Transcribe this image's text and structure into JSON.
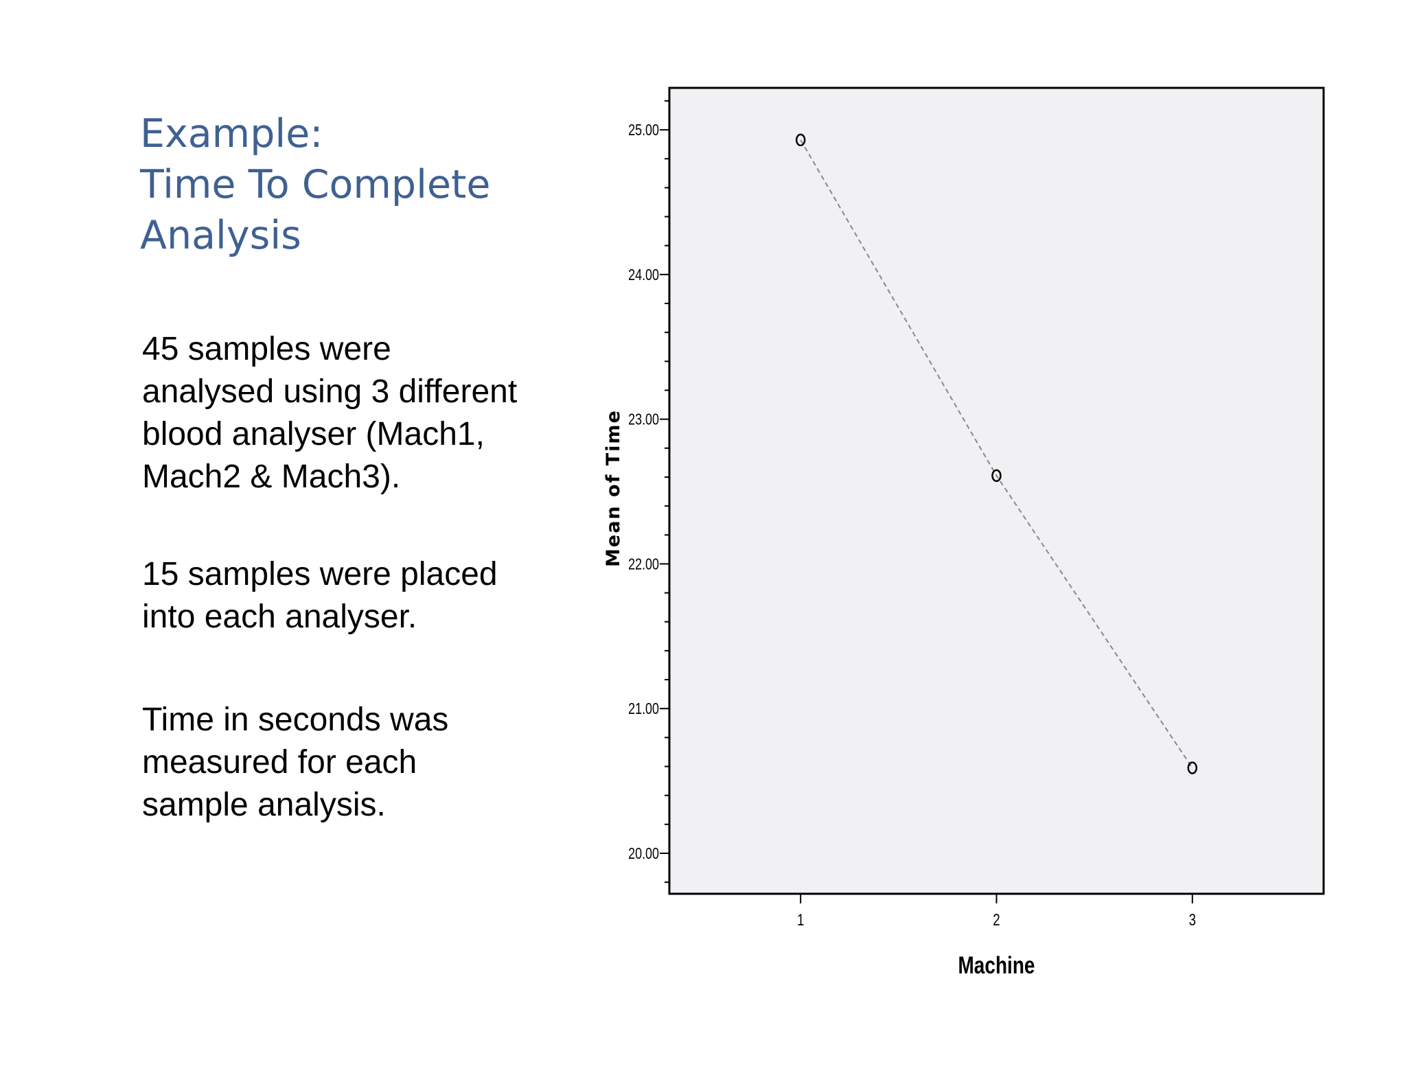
{
  "slide": {
    "title_lines": [
      "Example:",
      "Time To Complete",
      "Analysis"
    ],
    "paragraphs": [
      {
        "lines": [
          "45 samples were",
          "analysed using 3 different",
          "blood analyser (Mach1,",
          "Mach2 & Mach3)."
        ]
      },
      {
        "lines": [
          "15 samples were placed",
          "into each analyser."
        ]
      },
      {
        "lines": [
          "Time in seconds was",
          "measured for each",
          "sample analysis."
        ]
      }
    ]
  },
  "colors": {
    "title": "#3f6191",
    "plot_background": "#f1f0f2",
    "line": "#888888"
  },
  "chart_data": {
    "type": "line",
    "title": "",
    "xlabel": "Machine",
    "ylabel": "Mean of Time",
    "categories": [
      "1",
      "2",
      "3"
    ],
    "x": [
      1,
      2,
      3
    ],
    "series": [
      {
        "values": [
          24.93,
          22.61,
          20.59
        ]
      }
    ],
    "xlim": [
      0.33,
      3.67
    ],
    "ylim": [
      19.72,
      25.29
    ],
    "yticks": [
      20.0,
      21.0,
      22.0,
      23.0,
      24.0,
      25.0
    ],
    "ytick_labels": [
      "20.00",
      "21.00",
      "22.00",
      "23.00",
      "24.00",
      "25.00"
    ],
    "line_style": "dashed",
    "marker": "open-circle",
    "grid": false,
    "legend": "none"
  }
}
